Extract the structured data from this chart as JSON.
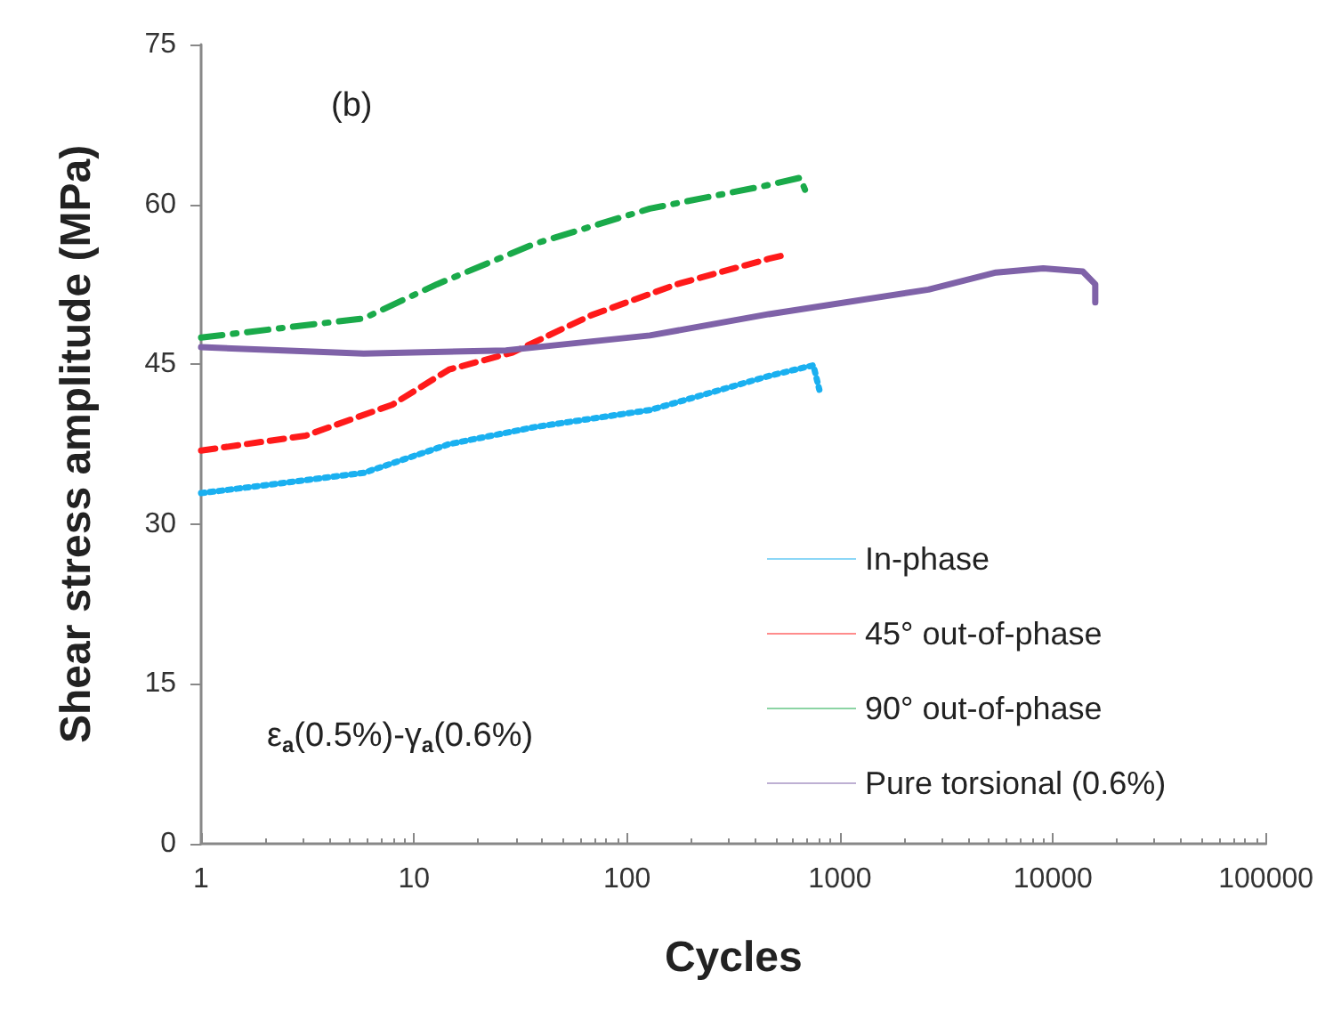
{
  "chart_data": {
    "type": "line",
    "xlabel": "Cycles",
    "ylabel": "Shear stress amplitude (MPa)",
    "log": "x",
    "xlim": [
      1,
      100000
    ],
    "xticks": [
      1,
      10,
      100,
      1000,
      10000,
      100000
    ],
    "ylim": [
      0,
      75
    ],
    "yticks": [
      0,
      15,
      30,
      45,
      60,
      75
    ],
    "grid": false,
    "legend": "bottom right",
    "marker": "none",
    "annotations": [
      "(b)",
      "ε$_{a}$(0.5%)-γ$_{a}$(0.6%)"
    ],
    "series": [
      {
        "name": "In-phase",
        "color": "#1ab0f0",
        "line_style": "dotted",
        "x": [
          1,
          5.8,
          14.6,
          36.8,
          128,
          464,
          750,
          800
        ],
        "values": [
          32.9,
          34.8,
          37.5,
          39.1,
          40.7,
          43.9,
          44.9,
          42.6
        ]
      },
      {
        "name": "45° out-of-phase",
        "color": "#ff1a1a",
        "line_style": "dashed",
        "x": [
          1,
          3.1,
          7.9,
          14.6,
          29,
          68,
          171,
          464,
          540
        ],
        "values": [
          36.9,
          38.3,
          41.2,
          44.5,
          46.1,
          49.6,
          52.5,
          54.9,
          55.2
        ]
      },
      {
        "name": "90° out-of-phase",
        "color": "#1aaa4a",
        "line_style": "dashdot",
        "x": [
          1,
          5.8,
          12.8,
          36.8,
          128,
          434,
          650,
          700
        ],
        "values": [
          47.5,
          49.3,
          52.5,
          56.3,
          59.6,
          61.7,
          62.5,
          60.9
        ]
      },
      {
        "name": "Pure torsional (0.6%)",
        "color": "#7f62a8",
        "line_style": "solid",
        "x": [
          1,
          5.8,
          27,
          128,
          464,
          2600,
          5400,
          9000,
          13800,
          15800,
          15800
        ],
        "values": [
          46.6,
          46.0,
          46.3,
          47.7,
          49.7,
          52.0,
          53.6,
          54.0,
          53.7,
          52.5,
          50.8
        ]
      }
    ]
  }
}
